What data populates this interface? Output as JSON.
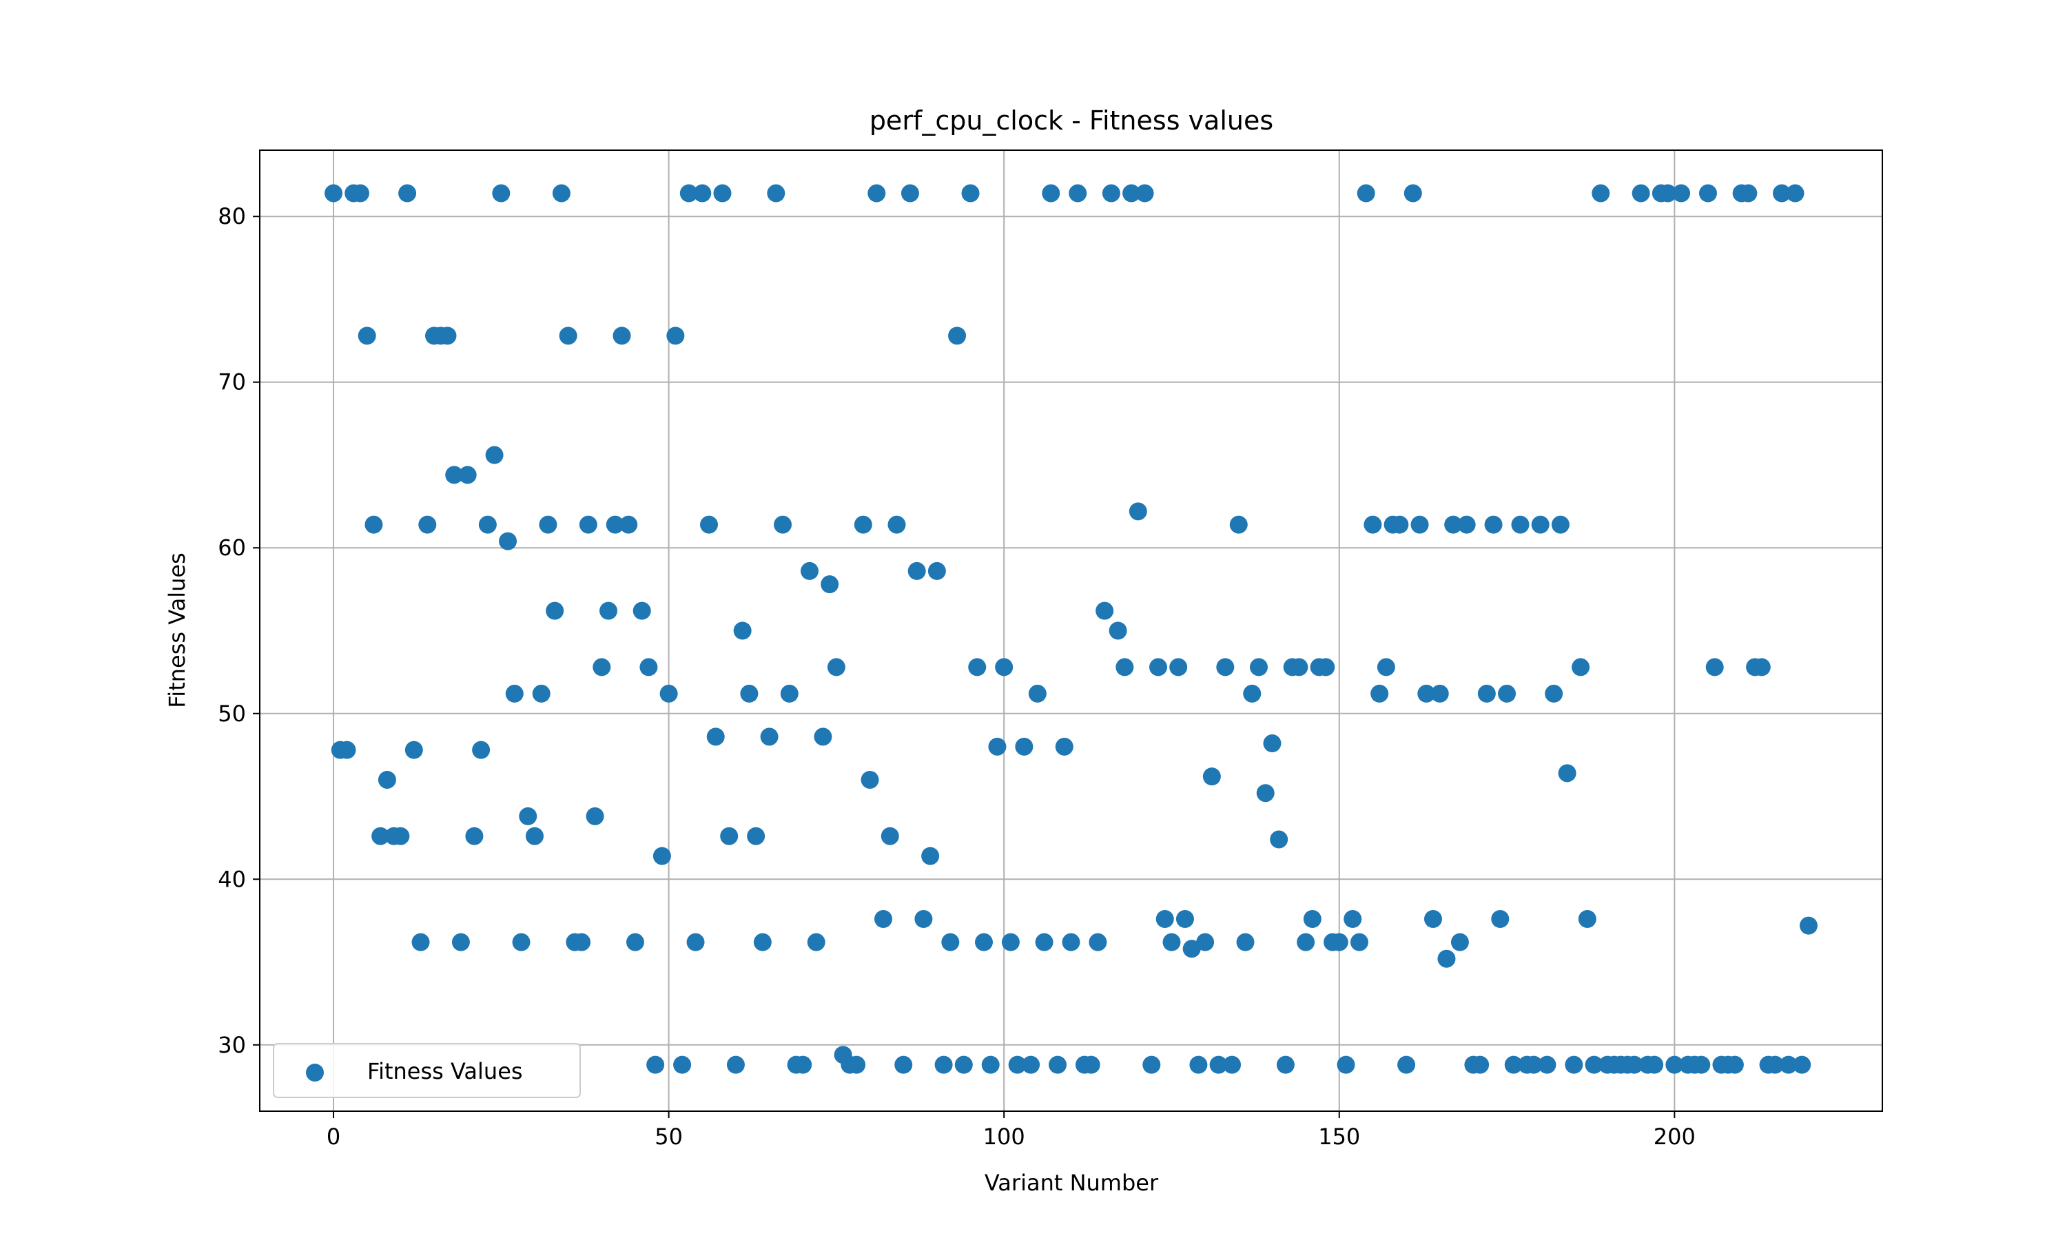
{
  "chart_data": {
    "type": "scatter",
    "title": "perf_cpu_clock - Fitness values",
    "xlabel": "Variant Number",
    "ylabel": "Fitness Values",
    "xlim": [
      -11,
      231
    ],
    "ylim": [
      26,
      84
    ],
    "xticks": [
      0,
      50,
      100,
      150,
      200
    ],
    "yticks": [
      30,
      40,
      50,
      60,
      70,
      80
    ],
    "grid": true,
    "legend": "lower-left",
    "series": [
      {
        "name": "Fitness Values",
        "color": "#1f77b4",
        "points": [
          [
            0,
            81.4
          ],
          [
            1,
            47.8
          ],
          [
            2,
            47.8
          ],
          [
            3,
            81.4
          ],
          [
            4,
            81.4
          ],
          [
            5,
            72.8
          ],
          [
            6,
            61.4
          ],
          [
            7,
            42.6
          ],
          [
            8,
            46
          ],
          [
            9,
            42.6
          ],
          [
            10,
            42.6
          ],
          [
            11,
            81.4
          ],
          [
            12,
            47.8
          ],
          [
            13,
            36.2
          ],
          [
            14,
            61.4
          ],
          [
            15,
            72.8
          ],
          [
            16,
            72.8
          ],
          [
            17,
            72.8
          ],
          [
            18,
            64.4
          ],
          [
            19,
            36.2
          ],
          [
            20,
            64.4
          ],
          [
            21,
            42.6
          ],
          [
            22,
            47.8
          ],
          [
            23,
            61.4
          ],
          [
            24,
            65.6
          ],
          [
            25,
            81.4
          ],
          [
            26,
            60.4
          ],
          [
            27,
            51.2
          ],
          [
            28,
            36.2
          ],
          [
            29,
            43.8
          ],
          [
            30,
            42.6
          ],
          [
            31,
            51.2
          ],
          [
            32,
            61.4
          ],
          [
            33,
            56.2
          ],
          [
            34,
            81.4
          ],
          [
            35,
            72.8
          ],
          [
            36,
            36.2
          ],
          [
            37,
            36.2
          ],
          [
            38,
            61.4
          ],
          [
            39,
            43.8
          ],
          [
            40,
            52.8
          ],
          [
            41,
            56.2
          ],
          [
            42,
            61.4
          ],
          [
            43,
            72.8
          ],
          [
            44,
            61.4
          ],
          [
            45,
            36.2
          ],
          [
            46,
            56.2
          ],
          [
            47,
            52.8
          ],
          [
            48,
            28.8
          ],
          [
            49,
            41.4
          ],
          [
            50,
            51.2
          ],
          [
            51,
            72.8
          ],
          [
            52,
            28.8
          ],
          [
            53,
            81.4
          ],
          [
            54,
            36.2
          ],
          [
            55,
            81.4
          ],
          [
            56,
            61.4
          ],
          [
            57,
            48.6
          ],
          [
            58,
            81.4
          ],
          [
            59,
            42.6
          ],
          [
            60,
            28.8
          ],
          [
            61,
            55
          ],
          [
            62,
            51.2
          ],
          [
            63,
            42.6
          ],
          [
            64,
            36.2
          ],
          [
            65,
            48.6
          ],
          [
            66,
            81.4
          ],
          [
            67,
            61.4
          ],
          [
            68,
            51.2
          ],
          [
            69,
            28.8
          ],
          [
            70,
            28.8
          ],
          [
            71,
            58.6
          ],
          [
            72,
            36.2
          ],
          [
            73,
            48.6
          ],
          [
            74,
            57.8
          ],
          [
            75,
            52.8
          ],
          [
            76,
            29.4
          ],
          [
            77,
            28.8
          ],
          [
            78,
            28.8
          ],
          [
            79,
            61.4
          ],
          [
            80,
            46
          ],
          [
            81,
            81.4
          ],
          [
            82,
            37.6
          ],
          [
            83,
            42.6
          ],
          [
            84,
            61.4
          ],
          [
            85,
            28.8
          ],
          [
            86,
            81.4
          ],
          [
            87,
            58.6
          ],
          [
            88,
            37.6
          ],
          [
            89,
            41.4
          ],
          [
            90,
            58.6
          ],
          [
            91,
            28.8
          ],
          [
            92,
            36.2
          ],
          [
            93,
            72.8
          ],
          [
            94,
            28.8
          ],
          [
            95,
            81.4
          ],
          [
            96,
            52.8
          ],
          [
            97,
            36.2
          ],
          [
            98,
            28.8
          ],
          [
            99,
            48
          ],
          [
            100,
            52.8
          ],
          [
            101,
            36.2
          ],
          [
            102,
            28.8
          ],
          [
            103,
            48
          ],
          [
            104,
            28.8
          ],
          [
            105,
            51.2
          ],
          [
            106,
            36.2
          ],
          [
            107,
            81.4
          ],
          [
            108,
            28.8
          ],
          [
            109,
            48
          ],
          [
            110,
            36.2
          ],
          [
            111,
            81.4
          ],
          [
            112,
            28.8
          ],
          [
            113,
            28.8
          ],
          [
            114,
            36.2
          ],
          [
            115,
            56.2
          ],
          [
            116,
            81.4
          ],
          [
            117,
            55
          ],
          [
            118,
            52.8
          ],
          [
            119,
            81.4
          ],
          [
            120,
            62.2
          ],
          [
            121,
            81.4
          ],
          [
            122,
            28.8
          ],
          [
            123,
            52.8
          ],
          [
            124,
            37.6
          ],
          [
            125,
            36.2
          ],
          [
            126,
            52.8
          ],
          [
            127,
            37.6
          ],
          [
            128,
            35.8
          ],
          [
            129,
            28.8
          ],
          [
            130,
            36.2
          ],
          [
            131,
            46.2
          ],
          [
            132,
            28.8
          ],
          [
            133,
            52.8
          ],
          [
            134,
            28.8
          ],
          [
            135,
            61.4
          ],
          [
            136,
            36.2
          ],
          [
            137,
            51.2
          ],
          [
            138,
            52.8
          ],
          [
            139,
            45.2
          ],
          [
            140,
            48.2
          ],
          [
            141,
            42.4
          ],
          [
            142,
            28.8
          ],
          [
            143,
            52.8
          ],
          [
            144,
            52.8
          ],
          [
            145,
            36.2
          ],
          [
            146,
            37.6
          ],
          [
            147,
            52.8
          ],
          [
            148,
            52.8
          ],
          [
            149,
            36.2
          ],
          [
            150,
            36.2
          ],
          [
            151,
            28.8
          ],
          [
            152,
            37.6
          ],
          [
            153,
            36.2
          ],
          [
            154,
            81.4
          ],
          [
            155,
            61.4
          ],
          [
            156,
            51.2
          ],
          [
            157,
            52.8
          ],
          [
            158,
            61.4
          ],
          [
            159,
            61.4
          ],
          [
            160,
            28.8
          ],
          [
            161,
            81.4
          ],
          [
            162,
            61.4
          ],
          [
            163,
            51.2
          ],
          [
            164,
            37.6
          ],
          [
            165,
            51.2
          ],
          [
            166,
            35.2
          ],
          [
            167,
            61.4
          ],
          [
            168,
            36.2
          ],
          [
            169,
            61.4
          ],
          [
            170,
            28.8
          ],
          [
            171,
            28.8
          ],
          [
            172,
            51.2
          ],
          [
            173,
            61.4
          ],
          [
            174,
            37.6
          ],
          [
            175,
            51.2
          ],
          [
            176,
            28.8
          ],
          [
            177,
            61.4
          ],
          [
            178,
            28.8
          ],
          [
            179,
            28.8
          ],
          [
            180,
            61.4
          ],
          [
            181,
            28.8
          ],
          [
            182,
            51.2
          ],
          [
            183,
            61.4
          ],
          [
            184,
            46.4
          ],
          [
            185,
            28.8
          ],
          [
            186,
            52.8
          ],
          [
            187,
            37.6
          ],
          [
            188,
            28.8
          ],
          [
            189,
            81.4
          ],
          [
            190,
            28.8
          ],
          [
            191,
            28.8
          ],
          [
            192,
            28.8
          ],
          [
            193,
            28.8
          ],
          [
            194,
            28.8
          ],
          [
            195,
            81.4
          ],
          [
            196,
            28.8
          ],
          [
            197,
            28.8
          ],
          [
            198,
            81.4
          ],
          [
            199,
            81.4
          ],
          [
            200,
            28.8
          ],
          [
            201,
            81.4
          ],
          [
            202,
            28.8
          ],
          [
            203,
            28.8
          ],
          [
            204,
            28.8
          ],
          [
            205,
            81.4
          ],
          [
            206,
            52.8
          ],
          [
            207,
            28.8
          ],
          [
            208,
            28.8
          ],
          [
            209,
            28.8
          ],
          [
            210,
            81.4
          ],
          [
            211,
            81.4
          ],
          [
            212,
            52.8
          ],
          [
            213,
            52.8
          ],
          [
            214,
            28.8
          ],
          [
            215,
            28.8
          ],
          [
            216,
            81.4
          ],
          [
            217,
            28.8
          ],
          [
            218,
            81.4
          ],
          [
            219,
            28.8
          ],
          [
            220,
            37.2
          ]
        ]
      }
    ]
  }
}
